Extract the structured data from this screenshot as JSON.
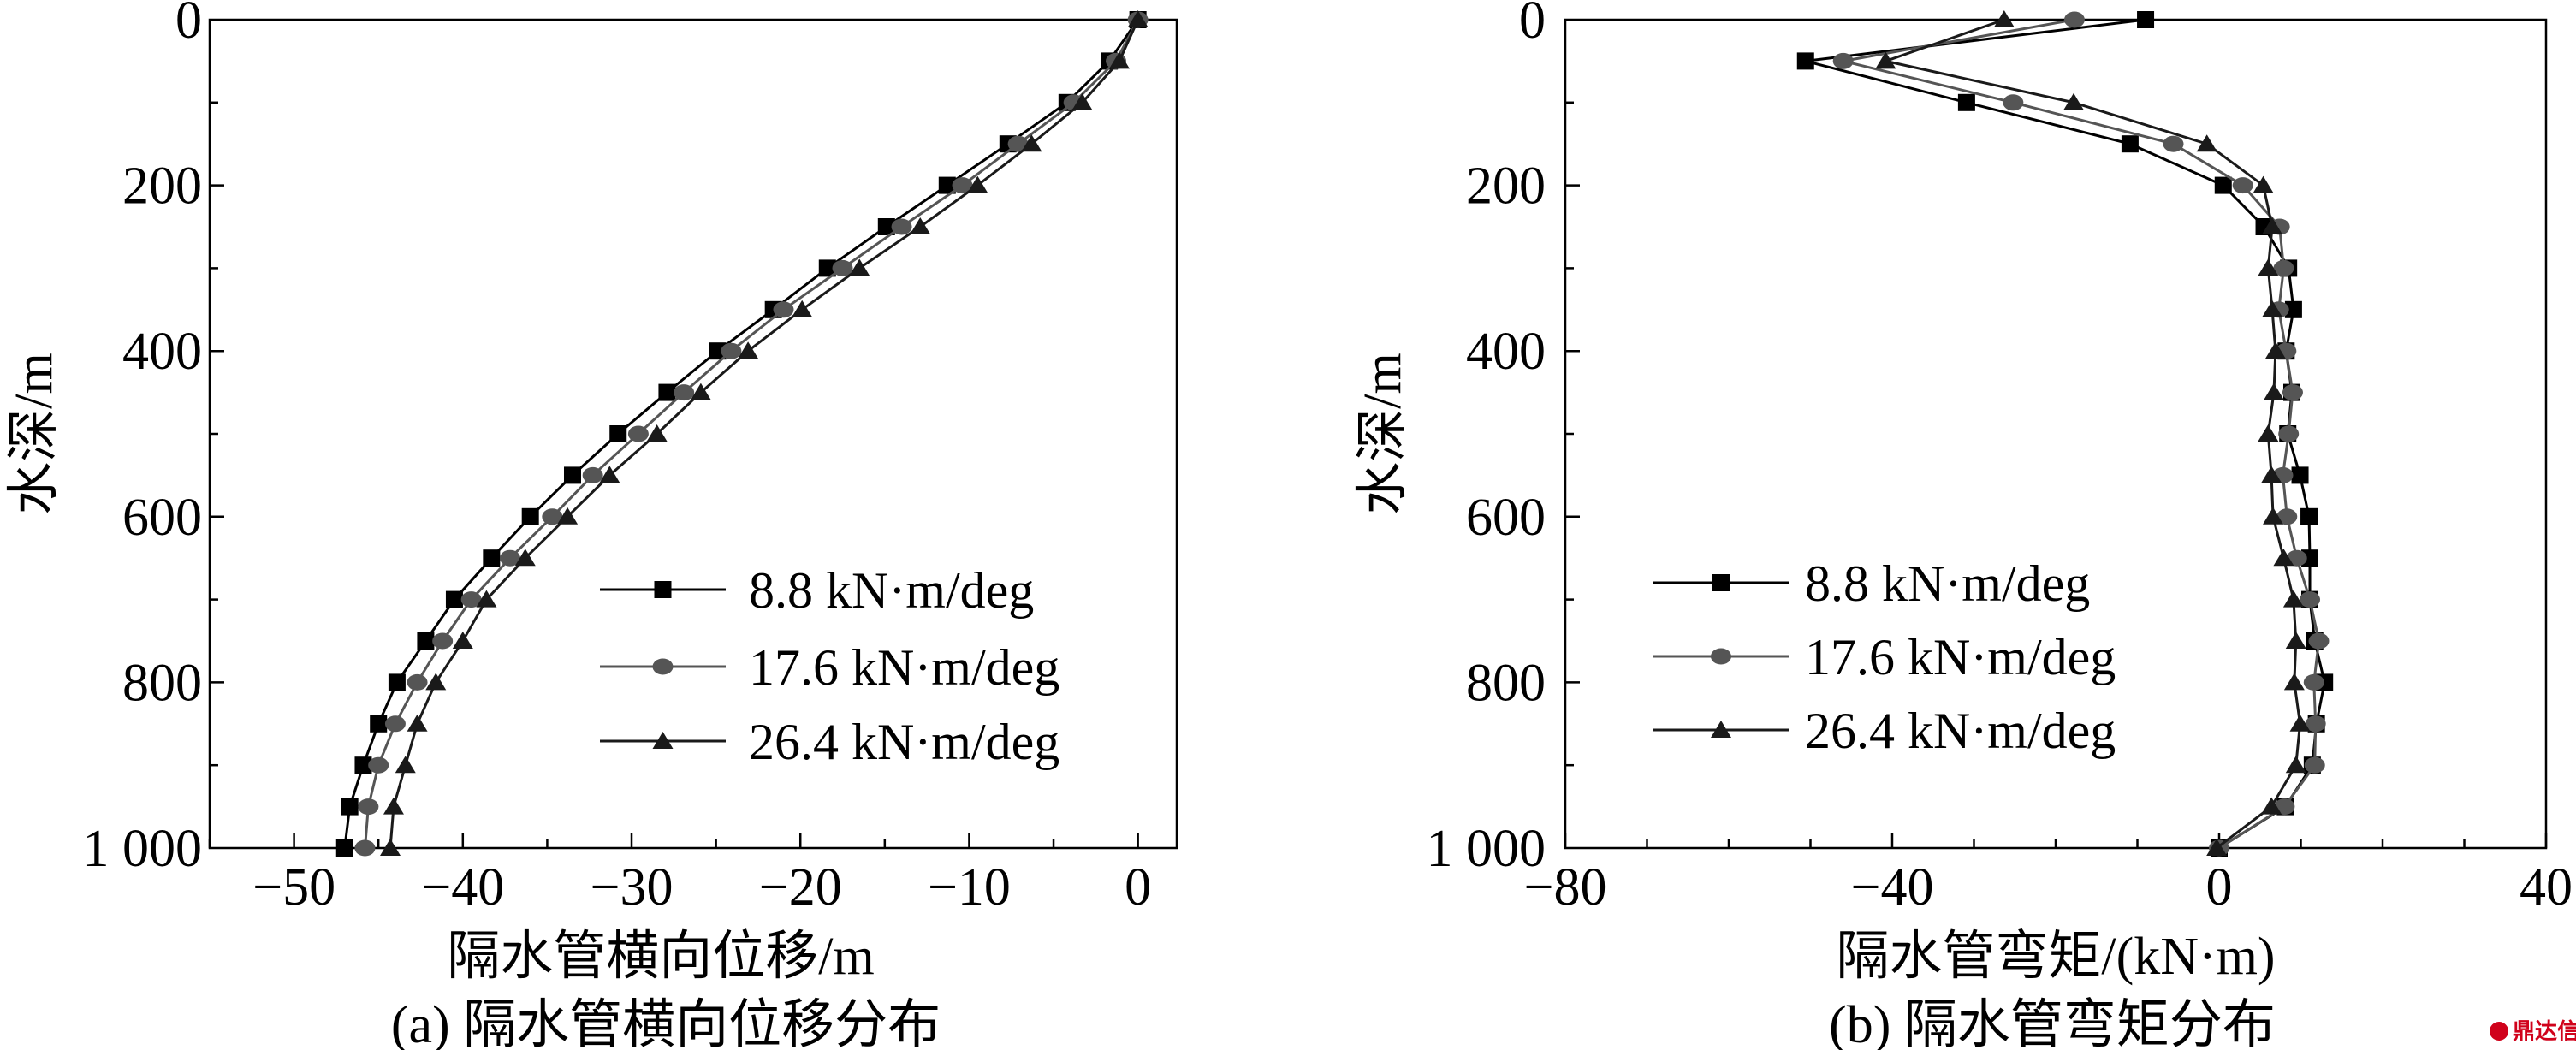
{
  "chart_data": [
    {
      "type": "line",
      "panel": "a",
      "title": "(a) 隔水管横向位移分布",
      "xlabel": "隔水管横向位移/m",
      "ylabel": "水深/m",
      "xlim": [
        -55,
        2.3
      ],
      "ylim": [
        0,
        1000
      ],
      "y_inverted": true,
      "xticks": [
        -50,
        -40,
        -30,
        -20,
        -10,
        0
      ],
      "xtick_labels": [
        "−50",
        "−40",
        "−30",
        "−20",
        "−10",
        "0"
      ],
      "yticks": [
        0,
        200,
        400,
        600,
        800,
        1000
      ],
      "ytick_labels": [
        "0",
        "200",
        "400",
        "600",
        "800",
        "1 000"
      ],
      "legend_position": "lower-right",
      "depth": [
        0,
        50,
        100,
        150,
        200,
        250,
        300,
        350,
        400,
        450,
        500,
        550,
        600,
        650,
        700,
        750,
        800,
        850,
        900,
        950,
        1000
      ],
      "series": [
        {
          "name": "8.8 kN·m/deg",
          "marker": "square",
          "color": "#000000",
          "values": [
            0,
            -1.7,
            -4.2,
            -7.7,
            -11.3,
            -14.9,
            -18.4,
            -21.6,
            -24.9,
            -27.9,
            -30.8,
            -33.5,
            -36.0,
            -38.3,
            -40.5,
            -42.2,
            -43.9,
            -45.0,
            -45.9,
            -46.7,
            -47.0
          ]
        },
        {
          "name": "17.6 kN·m/deg",
          "marker": "circle",
          "color": "#555555",
          "values": [
            0,
            -1.3,
            -3.8,
            -7.1,
            -10.4,
            -14.0,
            -17.5,
            -21.0,
            -24.1,
            -26.9,
            -29.6,
            -32.3,
            -34.7,
            -37.2,
            -39.5,
            -41.2,
            -42.7,
            -44.0,
            -45.0,
            -45.6,
            -45.8
          ]
        },
        {
          "name": "26.4 kN·m/deg",
          "marker": "triangle",
          "color": "#1a1a1a",
          "values": [
            0,
            -1.1,
            -3.3,
            -6.3,
            -9.5,
            -12.9,
            -16.5,
            -19.9,
            -23.1,
            -25.9,
            -28.5,
            -31.3,
            -33.8,
            -36.3,
            -38.6,
            -40.0,
            -41.6,
            -42.7,
            -43.4,
            -44.1,
            -44.3
          ]
        }
      ]
    },
    {
      "type": "line",
      "panel": "b",
      "title": "(b) 隔水管弯矩分布",
      "xlabel": "隔水管弯矩/(kN·m)",
      "ylabel": "水深/m",
      "xlim": [
        -80,
        40
      ],
      "ylim": [
        0,
        1000
      ],
      "y_inverted": true,
      "xticks": [
        -80,
        -40,
        0,
        40
      ],
      "xtick_labels": [
        "−80",
        "−40",
        "0",
        "40"
      ],
      "yticks": [
        0,
        200,
        400,
        600,
        800,
        1000
      ],
      "ytick_labels": [
        "0",
        "200",
        "400",
        "600",
        "800",
        "1 000"
      ],
      "legend_position": "lower-left",
      "depth": [
        0,
        50,
        100,
        150,
        200,
        250,
        300,
        350,
        400,
        450,
        500,
        550,
        600,
        650,
        700,
        750,
        800,
        850,
        900,
        950,
        1000
      ],
      "series": [
        {
          "name": "8.8 kN·m/deg",
          "marker": "square",
          "color": "#000000",
          "values": [
            -9.0,
            -50.6,
            -30.9,
            -10.9,
            0.5,
            5.5,
            8.5,
            9.1,
            8.2,
            8.9,
            8.4,
            9.9,
            11.0,
            11.1,
            11.1,
            11.7,
            12.9,
            11.9,
            11.4,
            8.1,
            0
          ]
        },
        {
          "name": "17.6 kN·m/deg",
          "marker": "circle",
          "color": "#555555",
          "values": [
            -17.7,
            -46.0,
            -25.2,
            -5.6,
            2.9,
            7.4,
            7.9,
            7.3,
            8.2,
            9.0,
            8.5,
            7.8,
            8.3,
            9.5,
            11.1,
            12.2,
            11.6,
            11.8,
            11.7,
            8.0,
            0
          ]
        },
        {
          "name": "26.4 kN·m/deg",
          "marker": "triangle",
          "color": "#1a1a1a",
          "values": [
            -26.3,
            -40.8,
            -17.8,
            -1.5,
            5.4,
            6.5,
            6.0,
            6.5,
            6.9,
            6.7,
            6.0,
            6.4,
            6.6,
            7.9,
            9.1,
            9.4,
            9.2,
            9.9,
            9.4,
            6.4,
            -0.3
          ]
        }
      ]
    }
  ],
  "watermark": "鼎达信"
}
